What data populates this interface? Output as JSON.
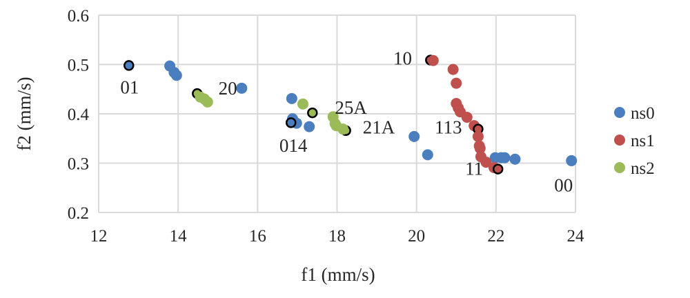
{
  "chart_data": {
    "type": "scatter",
    "xlabel": "f1 (mm/s)",
    "ylabel": "f2 (mm/s)",
    "xlim": [
      12,
      24
    ],
    "ylim": [
      0.2,
      0.6
    ],
    "xticks": [
      "12",
      "14",
      "16",
      "18",
      "20",
      "22",
      "24"
    ],
    "yticks": [
      "0.2",
      "0.3",
      "0.4",
      "0.5",
      "0.6"
    ],
    "grid": true,
    "legend_position": "right",
    "series": [
      {
        "name": "ns0",
        "color": "#4a7ebf",
        "points": [
          {
            "x": 12.76,
            "y": 0.498,
            "highlight": true
          },
          {
            "x": 13.79,
            "y": 0.497
          },
          {
            "x": 13.9,
            "y": 0.484
          },
          {
            "x": 13.96,
            "y": 0.478
          },
          {
            "x": 15.6,
            "y": 0.452
          },
          {
            "x": 16.86,
            "y": 0.431
          },
          {
            "x": 16.88,
            "y": 0.39
          },
          {
            "x": 16.98,
            "y": 0.381
          },
          {
            "x": 16.84,
            "y": 0.382,
            "highlight": true
          },
          {
            "x": 17.3,
            "y": 0.374
          },
          {
            "x": 19.94,
            "y": 0.354
          },
          {
            "x": 20.28,
            "y": 0.317
          },
          {
            "x": 21.98,
            "y": 0.311
          },
          {
            "x": 22.13,
            "y": 0.311
          },
          {
            "x": 22.22,
            "y": 0.311
          },
          {
            "x": 22.48,
            "y": 0.308
          },
          {
            "x": 23.9,
            "y": 0.305
          }
        ]
      },
      {
        "name": "ns1",
        "color": "#c0504d",
        "points": [
          {
            "x": 20.35,
            "y": 0.509,
            "highlight": true
          },
          {
            "x": 20.42,
            "y": 0.508
          },
          {
            "x": 20.92,
            "y": 0.49
          },
          {
            "x": 21.0,
            "y": 0.462
          },
          {
            "x": 21.0,
            "y": 0.421
          },
          {
            "x": 21.05,
            "y": 0.412
          },
          {
            "x": 21.1,
            "y": 0.404
          },
          {
            "x": 21.27,
            "y": 0.393
          },
          {
            "x": 21.45,
            "y": 0.376
          },
          {
            "x": 21.55,
            "y": 0.369,
            "highlight": true
          },
          {
            "x": 21.55,
            "y": 0.354
          },
          {
            "x": 21.58,
            "y": 0.335
          },
          {
            "x": 21.6,
            "y": 0.33
          },
          {
            "x": 21.62,
            "y": 0.313
          },
          {
            "x": 21.75,
            "y": 0.302
          },
          {
            "x": 21.95,
            "y": 0.291
          },
          {
            "x": 22.05,
            "y": 0.288,
            "highlight": true
          }
        ]
      },
      {
        "name": "ns2",
        "color": "#9bbb59",
        "points": [
          {
            "x": 14.48,
            "y": 0.441,
            "highlight": true
          },
          {
            "x": 14.56,
            "y": 0.434
          },
          {
            "x": 14.66,
            "y": 0.43
          },
          {
            "x": 14.74,
            "y": 0.424
          },
          {
            "x": 17.14,
            "y": 0.42
          },
          {
            "x": 17.38,
            "y": 0.402,
            "highlight": true
          },
          {
            "x": 17.9,
            "y": 0.394
          },
          {
            "x": 17.95,
            "y": 0.38
          },
          {
            "x": 17.98,
            "y": 0.376
          },
          {
            "x": 18.22,
            "y": 0.366,
            "highlight": true
          },
          {
            "x": 18.15,
            "y": 0.369
          }
        ]
      }
    ],
    "annotations": [
      {
        "text": "01",
        "x": 12.78,
        "y": 0.441
      },
      {
        "text": "20",
        "x": 15.25,
        "y": 0.439
      },
      {
        "text": "25A",
        "x": 18.35,
        "y": 0.4
      },
      {
        "text": "014",
        "x": 16.9,
        "y": 0.323
      },
      {
        "text": "21A",
        "x": 19.05,
        "y": 0.36
      },
      {
        "text": "10",
        "x": 19.65,
        "y": 0.5
      },
      {
        "text": "113",
        "x": 20.8,
        "y": 0.36
      },
      {
        "text": "11",
        "x": 21.45,
        "y": 0.276
      },
      {
        "text": "00",
        "x": 23.7,
        "y": 0.243
      }
    ]
  }
}
